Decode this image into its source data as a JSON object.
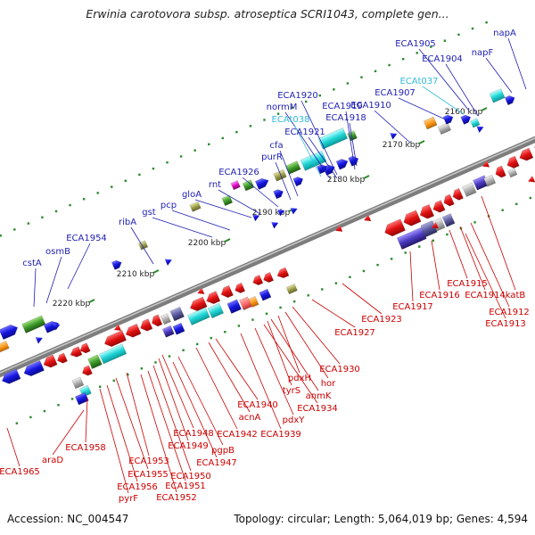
{
  "title": "Erwinia carotovora subsp. atroseptica SCRI1043, complete gen...",
  "footer": {
    "accession": "Accession: NC_004547",
    "topology": "Topology: circular; Length: 5,064,019 bp; Genes: 4,594"
  },
  "colors": {
    "forward_label": "#1f1fb4",
    "reverse_label": "#cc0000",
    "rna_label": "#33bbdd",
    "backbone": "#888888",
    "tick": "#2a8a2a"
  },
  "ticks": [
    {
      "label": "2160 kbp"
    },
    {
      "label": "2170 kbp"
    },
    {
      "label": "2180 kbp"
    },
    {
      "label": "2190 kbp"
    },
    {
      "label": "2200 kbp"
    },
    {
      "label": "2210 kbp"
    },
    {
      "label": "2220 kbp"
    }
  ],
  "forward_labels": [
    {
      "text": "napA",
      "kind": "cds"
    },
    {
      "text": "ECA1905",
      "kind": "cds"
    },
    {
      "text": "ECA1904",
      "kind": "cds"
    },
    {
      "text": "napF",
      "kind": "cds"
    },
    {
      "text": "ECAt037",
      "kind": "rna"
    },
    {
      "text": "ECA1907",
      "kind": "cds"
    },
    {
      "text": "ECA1920",
      "kind": "cds"
    },
    {
      "text": "normM",
      "kind": "cds"
    },
    {
      "text": "ECA1919",
      "kind": "cds"
    },
    {
      "text": "ECA1910",
      "kind": "cds"
    },
    {
      "text": "ECAt038",
      "kind": "rna"
    },
    {
      "text": "ECA1918",
      "kind": "cds"
    },
    {
      "text": "ECA1921",
      "kind": "cds"
    },
    {
      "text": "cfa",
      "kind": "cds"
    },
    {
      "text": "purR",
      "kind": "cds"
    },
    {
      "text": "ECA1926",
      "kind": "cds"
    },
    {
      "text": "rnt",
      "kind": "cds"
    },
    {
      "text": "gloA",
      "kind": "cds"
    },
    {
      "text": "pcp",
      "kind": "cds"
    },
    {
      "text": "gst",
      "kind": "cds"
    },
    {
      "text": "ribA",
      "kind": "cds"
    },
    {
      "text": "ECA1954",
      "kind": "cds"
    },
    {
      "text": "osmB",
      "kind": "cds"
    },
    {
      "text": "cstA",
      "kind": "cds"
    }
  ],
  "reverse_labels": [
    {
      "text": "katB"
    },
    {
      "text": "ECA1914"
    },
    {
      "text": "ECA1915"
    },
    {
      "text": "ECA1916"
    },
    {
      "text": "ECA1912"
    },
    {
      "text": "ECA1913"
    },
    {
      "text": "ECA1917"
    },
    {
      "text": "ECA1923"
    },
    {
      "text": "ECA1927"
    },
    {
      "text": "ECA1930"
    },
    {
      "text": "hor"
    },
    {
      "text": "pdxH"
    },
    {
      "text": "anmK"
    },
    {
      "text": "tyrS"
    },
    {
      "text": "ECA1934"
    },
    {
      "text": "pdxY"
    },
    {
      "text": "ECA1940"
    },
    {
      "text": "acnA"
    },
    {
      "text": "ECA1939"
    },
    {
      "text": "ECA1942"
    },
    {
      "text": "ECA1948"
    },
    {
      "text": "ECA1949"
    },
    {
      "text": "pgpB"
    },
    {
      "text": "ECA1947"
    },
    {
      "text": "ECA1953"
    },
    {
      "text": "ECA1950"
    },
    {
      "text": "ECA1955"
    },
    {
      "text": "ECA1951"
    },
    {
      "text": "ECA1956"
    },
    {
      "text": "ECA1952"
    },
    {
      "text": "pyrF"
    },
    {
      "text": "ECA1958"
    },
    {
      "text": "araD"
    },
    {
      "text": "ECA1965"
    }
  ]
}
